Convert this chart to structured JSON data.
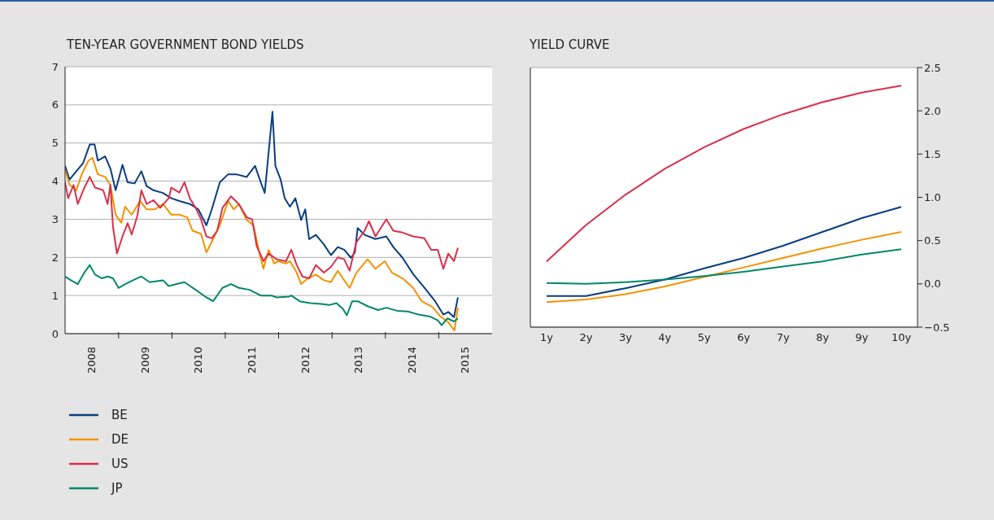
{
  "chart_data": [
    {
      "type": "line",
      "title": "TEN-YEAR GOVERNMENT BOND YIELDS",
      "xlim": [
        "2008-01-01",
        "2016-01-01"
      ],
      "xticks": [
        {
          "value": "2008-07-01",
          "label": "2008"
        },
        {
          "value": "2009-01-01",
          "label": null
        },
        {
          "value": "2009-07-01",
          "label": "2009"
        },
        {
          "value": "2010-01-01",
          "label": null
        },
        {
          "value": "2010-07-01",
          "label": "2010"
        },
        {
          "value": "2011-01-01",
          "label": null
        },
        {
          "value": "2011-07-01",
          "label": "2011"
        },
        {
          "value": "2012-01-01",
          "label": null
        },
        {
          "value": "2012-07-01",
          "label": "2012"
        },
        {
          "value": "2013-01-01",
          "label": null
        },
        {
          "value": "2013-07-01",
          "label": "2013"
        },
        {
          "value": "2014-01-01",
          "label": null
        },
        {
          "value": "2014-07-01",
          "label": "2014"
        },
        {
          "value": "2015-01-01",
          "label": null
        },
        {
          "value": "2015-07-01",
          "label": "2015"
        }
      ],
      "ylim": [
        0,
        7
      ],
      "yticks": [
        0,
        1,
        2,
        3,
        4,
        5,
        6,
        7
      ],
      "grid": "y",
      "legend": "bottom",
      "series": [
        {
          "name": "BE",
          "color": "#0a3d7f",
          "x": [
            "2008-01-01",
            "2008-02-01",
            "2008-03-18",
            "2008-05-03",
            "2008-06-18",
            "2008-07-21",
            "2008-08-12",
            "2008-10-01",
            "2008-11-06",
            "2008-12-12",
            "2009-01-28",
            "2009-03-04",
            "2009-04-21",
            "2009-06-06",
            "2009-07-12",
            "2009-08-28",
            "2009-11-01",
            "2009-12-28",
            "2010-02-21",
            "2010-05-04",
            "2010-07-01",
            "2010-08-25",
            "2010-10-01",
            "2010-11-25",
            "2011-01-21",
            "2011-03-16",
            "2011-05-28",
            "2011-07-24",
            "2011-09-01",
            "2011-09-28",
            "2011-10-16",
            "2011-11-20",
            "2011-12-10",
            "2012-01-15",
            "2012-02-12",
            "2012-03-19",
            "2012-04-25",
            "2012-06-03",
            "2012-07-01",
            "2012-07-28",
            "2012-09-12",
            "2012-11-06",
            "2012-12-24",
            "2013-02-09",
            "2013-03-25",
            "2013-05-10",
            "2013-06-06",
            "2013-06-25",
            "2013-08-12",
            "2013-10-25",
            "2014-01-07",
            "2014-02-24",
            "2014-04-28",
            "2014-07-10",
            "2014-09-24",
            "2014-12-07",
            "2015-02-01",
            "2015-03-07",
            "2015-04-15",
            "2015-05-12"
          ],
          "values": [
            4.4,
            4.04,
            4.26,
            4.47,
            4.96,
            4.96,
            4.54,
            4.65,
            4.33,
            3.76,
            4.43,
            3.97,
            3.94,
            4.26,
            3.87,
            3.76,
            3.69,
            3.55,
            3.48,
            3.4,
            3.26,
            2.84,
            3.26,
            3.97,
            4.18,
            4.18,
            4.11,
            4.4,
            3.97,
            3.69,
            4.4,
            5.82,
            4.4,
            4.04,
            3.55,
            3.33,
            3.55,
            2.98,
            3.26,
            2.48,
            2.59,
            2.34,
            2.06,
            2.27,
            2.2,
            1.99,
            2.13,
            2.77,
            2.59,
            2.48,
            2.55,
            2.27,
            1.99,
            1.56,
            1.21,
            0.85,
            0.5,
            0.57,
            0.43,
            0.95
          ]
        },
        {
          "name": "DE",
          "color": "#f39200",
          "x": [
            "2008-01-01",
            "2008-02-01",
            "2008-03-18",
            "2008-04-24",
            "2008-06-10",
            "2008-07-07",
            "2008-08-12",
            "2008-10-01",
            "2008-11-06",
            "2008-12-12",
            "2009-01-19",
            "2009-02-15",
            "2009-04-01",
            "2009-05-28",
            "2009-07-12",
            "2009-09-06",
            "2009-11-01",
            "2009-12-28",
            "2010-02-21",
            "2010-04-16",
            "2010-05-22",
            "2010-07-19",
            "2010-08-25",
            "2010-10-01",
            "2010-11-25",
            "2011-01-21",
            "2011-02-28",
            "2011-04-04",
            "2011-05-28",
            "2011-07-13",
            "2011-08-22",
            "2011-09-19",
            "2011-10-25",
            "2011-12-01",
            "2011-12-28",
            "2012-02-21",
            "2012-03-19",
            "2012-05-04",
            "2012-06-03",
            "2012-07-19",
            "2012-09-12",
            "2012-11-06",
            "2012-12-24",
            "2013-02-09",
            "2013-03-16",
            "2013-05-01",
            "2013-06-16",
            "2013-09-01",
            "2013-10-25",
            "2013-12-28",
            "2014-02-15",
            "2014-04-28",
            "2014-07-10",
            "2014-09-06",
            "2014-11-18",
            "2015-01-12",
            "2015-03-07",
            "2015-04-18",
            "2015-05-12"
          ],
          "values": [
            4.3,
            3.9,
            3.76,
            4.18,
            4.54,
            4.61,
            4.18,
            4.11,
            3.9,
            3.12,
            2.91,
            3.33,
            3.12,
            3.48,
            3.26,
            3.26,
            3.4,
            3.12,
            3.12,
            3.05,
            2.7,
            2.62,
            2.13,
            2.41,
            2.84,
            3.48,
            3.26,
            3.4,
            2.98,
            2.84,
            2.13,
            1.7,
            2.2,
            1.84,
            1.9,
            1.84,
            1.9,
            1.6,
            1.3,
            1.45,
            1.55,
            1.4,
            1.35,
            1.65,
            1.45,
            1.2,
            1.6,
            1.95,
            1.7,
            1.9,
            1.6,
            1.45,
            1.2,
            0.85,
            0.7,
            0.45,
            0.3,
            0.08,
            0.68
          ]
        },
        {
          "name": "US",
          "color": "#d9304a",
          "x": [
            "2008-01-01",
            "2008-01-22",
            "2008-02-28",
            "2008-03-28",
            "2008-05-12",
            "2008-06-18",
            "2008-07-24",
            "2008-09-18",
            "2008-10-18",
            "2008-11-06",
            "2008-11-24",
            "2008-12-21",
            "2009-01-28",
            "2009-03-04",
            "2009-04-01",
            "2009-05-10",
            "2009-06-06",
            "2009-07-12",
            "2009-08-28",
            "2009-10-13",
            "2009-12-10",
            "2009-12-28",
            "2010-02-21",
            "2010-03-28",
            "2010-05-04",
            "2010-06-12",
            "2010-07-19",
            "2010-08-25",
            "2010-10-01",
            "2010-11-07",
            "2010-12-13",
            "2011-02-09",
            "2011-04-04",
            "2011-05-28",
            "2011-07-04",
            "2011-08-04",
            "2011-09-19",
            "2011-10-25",
            "2011-12-19",
            "2012-02-21",
            "2012-03-28",
            "2012-05-04",
            "2012-06-12",
            "2012-07-28",
            "2012-09-12",
            "2012-11-06",
            "2012-12-24",
            "2013-02-09",
            "2013-03-25",
            "2013-05-01",
            "2013-06-16",
            "2013-08-12",
            "2013-09-10",
            "2013-10-25",
            "2014-01-07",
            "2014-02-24",
            "2014-04-28",
            "2014-07-10",
            "2014-09-24",
            "2014-11-10",
            "2014-12-25",
            "2015-02-01",
            "2015-03-07",
            "2015-04-15",
            "2015-05-12"
          ],
          "values": [
            3.97,
            3.55,
            3.9,
            3.4,
            3.83,
            4.11,
            3.83,
            3.76,
            3.4,
            3.9,
            2.8,
            2.1,
            2.55,
            2.9,
            2.6,
            3.1,
            3.76,
            3.4,
            3.5,
            3.3,
            3.55,
            3.83,
            3.7,
            3.97,
            3.55,
            3.3,
            3.0,
            2.55,
            2.5,
            2.7,
            3.3,
            3.6,
            3.4,
            3.05,
            3.0,
            2.3,
            1.9,
            2.1,
            1.95,
            1.9,
            2.2,
            1.8,
            1.5,
            1.45,
            1.8,
            1.6,
            1.75,
            2.0,
            1.95,
            1.65,
            2.4,
            2.7,
            2.95,
            2.55,
            3.0,
            2.7,
            2.65,
            2.55,
            2.5,
            2.2,
            2.2,
            1.7,
            2.1,
            1.9,
            2.25
          ]
        },
        {
          "name": "JP",
          "color": "#00876a",
          "x": [
            "2008-01-01",
            "2008-02-10",
            "2008-03-28",
            "2008-05-12",
            "2008-06-18",
            "2008-07-24",
            "2008-09-09",
            "2008-10-18",
            "2008-11-24",
            "2009-01-01",
            "2009-02-15",
            "2009-04-10",
            "2009-06-06",
            "2009-08-01",
            "2009-11-01",
            "2009-12-10",
            "2010-02-03",
            "2010-03-28",
            "2010-06-12",
            "2010-08-25",
            "2010-10-10",
            "2010-12-13",
            "2011-02-09",
            "2011-04-04",
            "2011-06-16",
            "2011-09-01",
            "2011-11-13",
            "2011-12-19",
            "2012-03-10",
            "2012-03-28",
            "2012-05-24",
            "2012-08-06",
            "2012-10-18",
            "2012-12-12",
            "2013-01-31",
            "2013-03-16",
            "2013-04-12",
            "2013-05-19",
            "2013-06-25",
            "2013-09-01",
            "2013-11-12",
            "2014-01-07",
            "2014-03-22",
            "2014-06-03",
            "2014-08-16",
            "2014-11-01",
            "2014-12-25",
            "2015-01-21",
            "2015-02-28",
            "2015-04-15",
            "2015-05-12"
          ],
          "values": [
            1.5,
            1.4,
            1.3,
            1.6,
            1.8,
            1.55,
            1.45,
            1.5,
            1.45,
            1.2,
            1.3,
            1.4,
            1.5,
            1.35,
            1.4,
            1.25,
            1.3,
            1.35,
            1.15,
            0.95,
            0.85,
            1.2,
            1.3,
            1.2,
            1.15,
            1.0,
            1.0,
            0.95,
            0.97,
            1.0,
            0.85,
            0.8,
            0.78,
            0.75,
            0.8,
            0.65,
            0.48,
            0.85,
            0.85,
            0.72,
            0.62,
            0.68,
            0.6,
            0.58,
            0.5,
            0.45,
            0.35,
            0.22,
            0.4,
            0.32,
            0.4
          ]
        }
      ]
    },
    {
      "type": "line",
      "title": "YIELD CURVE",
      "categories": [
        "1y",
        "2y",
        "3y",
        "4y",
        "5y",
        "6y",
        "7y",
        "8y",
        "9y",
        "10y"
      ],
      "ylim": [
        -0.5,
        2.5
      ],
      "yticks": [
        {
          "value": -0.5,
          "label": "−0.5"
        },
        {
          "value": 0,
          "label": "0.0"
        },
        {
          "value": 0.5,
          "label": "0.5"
        },
        {
          "value": 1,
          "label": "1.0"
        },
        {
          "value": 1.5,
          "label": "1.5"
        },
        {
          "value": 2,
          "label": "2.0"
        },
        2.5
      ],
      "grid": "y",
      "series": [
        {
          "color": "#0a3d7f",
          "values": [
            -0.14,
            -0.14,
            -0.05,
            0.05,
            0.18,
            0.3,
            0.44,
            0.6,
            0.76,
            0.89
          ]
        },
        {
          "color": "#f39200",
          "values": [
            -0.21,
            -0.18,
            -0.12,
            -0.03,
            0.08,
            0.19,
            0.3,
            0.41,
            0.51,
            0.6
          ]
        },
        {
          "color": "#d9304a",
          "values": [
            0.26,
            0.68,
            1.03,
            1.33,
            1.58,
            1.79,
            1.96,
            2.1,
            2.21,
            2.29
          ]
        },
        {
          "color": "#00876a",
          "values": [
            0.01,
            0.0,
            0.02,
            0.05,
            0.09,
            0.14,
            0.2,
            0.26,
            0.34,
            0.4
          ]
        }
      ]
    }
  ]
}
